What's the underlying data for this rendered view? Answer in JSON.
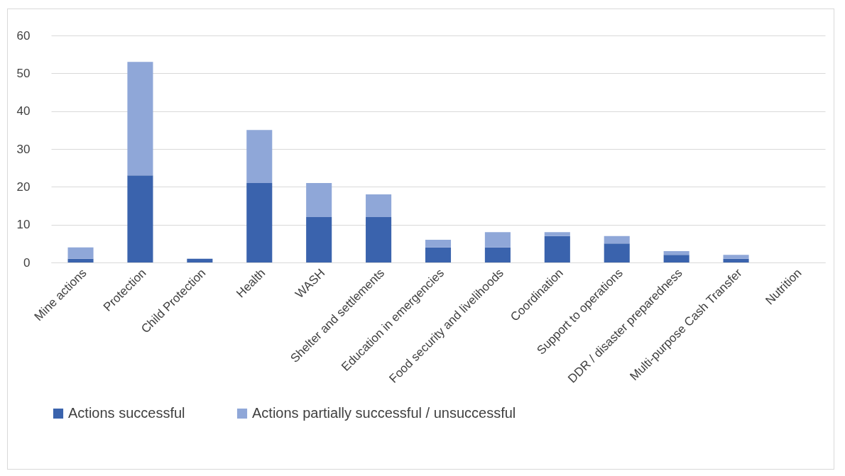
{
  "chart_data": {
    "type": "bar",
    "stacked": true,
    "categories": [
      "Mine actions",
      "Protection",
      "Child Protection",
      "Health",
      "WASH",
      "Shelter and settlements",
      "Education in emergencies",
      "Food security and livelihoods",
      "Coordination",
      "Support to operations",
      "DDR / disaster preparedness",
      "Multi-purpose Cash Transfer",
      "Nutrition"
    ],
    "series": [
      {
        "name": "Actions successful",
        "color": "#3a63ad",
        "values": [
          1,
          23,
          1,
          21,
          12,
          12,
          4,
          4,
          7,
          5,
          2,
          1,
          0
        ]
      },
      {
        "name": "Actions partially successful / unsuccessful",
        "color": "#8fa7d8",
        "values": [
          3,
          30,
          0,
          14,
          9,
          6,
          2,
          4,
          1,
          2,
          1,
          1,
          0
        ]
      }
    ],
    "ylim": [
      0,
      60
    ],
    "yticks": [
      0,
      10,
      20,
      30,
      40,
      50,
      60
    ],
    "grid": "y",
    "legend": "bottom"
  }
}
